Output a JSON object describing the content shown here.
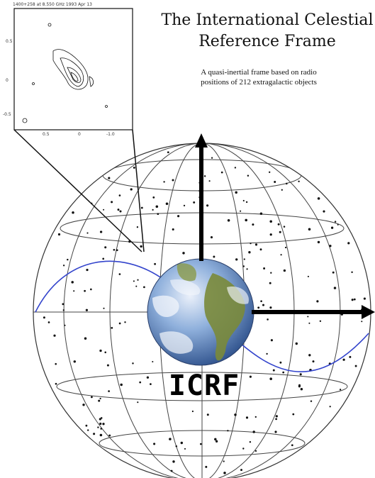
{
  "title": "The International Celestial Reference Frame",
  "subtitle": "A quasi-inertial frame based on radio positions of 212 extragalactic objects",
  "label": "ICRF",
  "inset": {
    "header": "1400+258 at 8.550 GHz 1993 Apr 13",
    "x_ticks": [
      "0.5",
      "0",
      "-1.0"
    ],
    "y_ticks": [
      "0.5",
      "0",
      "-0.5"
    ]
  },
  "colors": {
    "globe_lines": "#333333",
    "axes": "#000000",
    "equator_curve": "#3344cc",
    "earth_ocean": "#3d6fb5",
    "earth_land": "#7a8a3a",
    "earth_cloud": "#f3f6fb"
  },
  "icons": {
    "earth": "earth-globe",
    "radio_map": "radio-contour-map"
  }
}
